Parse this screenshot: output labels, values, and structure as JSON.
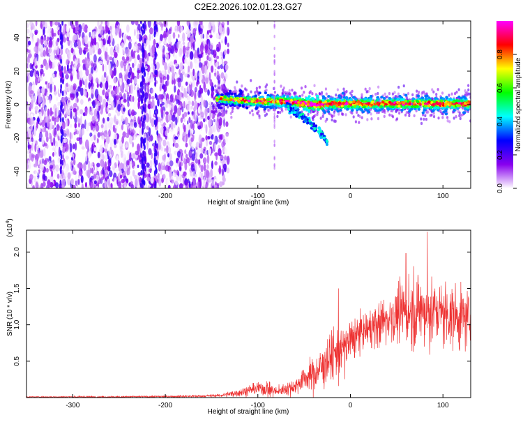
{
  "title": "C2E2.2026.102.01.23.G27",
  "colors": {
    "snr_line": "#ee3333",
    "axis": "#000000",
    "background": "#ffffff"
  },
  "chart_data": [
    {
      "type": "heatmap",
      "title": "C2E2.2026.102.01.23.G27",
      "xlabel": "Height of straight line (km)",
      "ylabel": "Frequency (Hz)",
      "xlim": [
        -350,
        130
      ],
      "ylim": [
        -50,
        50
      ],
      "x_ticks": [
        -300,
        -200,
        -100,
        0,
        100
      ],
      "x_tick_labels": [
        "-300",
        "-200",
        "-100",
        "0",
        "100"
      ],
      "y_ticks": [
        -40,
        -20,
        0,
        20,
        40
      ],
      "y_tick_labels": [
        "-40",
        "-20",
        "0",
        "20",
        "40"
      ],
      "colorbar": {
        "label": "Normalized spectral amplitude",
        "range": [
          0.0,
          1.0
        ],
        "ticks": [
          0.0,
          0.2,
          0.4,
          0.6,
          0.8
        ],
        "tick_labels": [
          "0.0",
          "0.2",
          "0.4",
          "0.6",
          "0.8"
        ],
        "colormap": [
          "#ffffff",
          "#8800ee",
          "#0000ff",
          "#00ffff",
          "#00ff00",
          "#ffff00",
          "#ff0000",
          "#ff00ff"
        ]
      },
      "features": {
        "noise_region_x": [
          -350,
          -140
        ],
        "ridge": [
          {
            "x": -140,
            "f": 3.5
          },
          {
            "x": -120,
            "f": 2.5
          },
          {
            "x": -100,
            "f": 2.0
          },
          {
            "x": -80,
            "f": 2.0
          },
          {
            "x": -60,
            "f": 1.5
          },
          {
            "x": -40,
            "f": 0.0
          },
          {
            "x": -20,
            "f": 0.5
          },
          {
            "x": 0,
            "f": 0.5
          },
          {
            "x": 40,
            "f": 0.5
          },
          {
            "x": 80,
            "f": 0.5
          },
          {
            "x": 130,
            "f": 0.5
          }
        ],
        "branch": [
          {
            "x": -70,
            "f": 0
          },
          {
            "x": -50,
            "f": -8
          },
          {
            "x": -35,
            "f": -15
          },
          {
            "x": -25,
            "f": -22
          }
        ]
      }
    },
    {
      "type": "line",
      "xlabel": "Height of straight line (km)",
      "ylabel": "SNR (10 * v/v)",
      "y_multiplier_label": "(x10",
      "y_multiplier_exp": "4",
      "xlim": [
        -350,
        130
      ],
      "ylim": [
        0,
        2.3
      ],
      "x_ticks": [
        -300,
        -200,
        -100,
        0,
        100
      ],
      "x_tick_labels": [
        "-300",
        "-200",
        "-100",
        "0",
        "100"
      ],
      "y_ticks": [
        0.5,
        1.0,
        1.5,
        2.0
      ],
      "y_tick_labels": [
        "0.5",
        "1.0",
        "1.5",
        "2.0"
      ],
      "series": [
        {
          "name": "SNR",
          "x": [
            -350,
            -300,
            -250,
            -200,
            -160,
            -140,
            -120,
            -100,
            -90,
            -80,
            -70,
            -60,
            -50,
            -40,
            -30,
            -20,
            -10,
            0,
            10,
            20,
            30,
            40,
            50,
            60,
            70,
            80,
            90,
            100,
            110,
            120,
            130
          ],
          "mean": [
            0.01,
            0.01,
            0.01,
            0.015,
            0.02,
            0.03,
            0.07,
            0.13,
            0.12,
            0.08,
            0.12,
            0.15,
            0.27,
            0.32,
            0.42,
            0.58,
            0.62,
            0.78,
            0.88,
            0.95,
            1.0,
            1.08,
            1.15,
            1.2,
            1.2,
            1.2,
            1.18,
            1.16,
            1.12,
            1.1,
            1.08
          ],
          "spread": [
            0.005,
            0.01,
            0.01,
            0.012,
            0.015,
            0.02,
            0.05,
            0.08,
            0.1,
            0.06,
            0.08,
            0.1,
            0.15,
            0.2,
            0.28,
            0.32,
            0.35,
            0.28,
            0.22,
            0.22,
            0.28,
            0.32,
            0.35,
            0.4,
            0.45,
            0.45,
            0.42,
            0.4,
            0.38,
            0.38,
            0.35
          ],
          "peaks": [
            {
              "x": -13,
              "y": 1.5
            },
            {
              "x": 83,
              "y": 2.28
            },
            {
              "x": 60,
              "y": 1.98
            }
          ]
        }
      ]
    }
  ]
}
